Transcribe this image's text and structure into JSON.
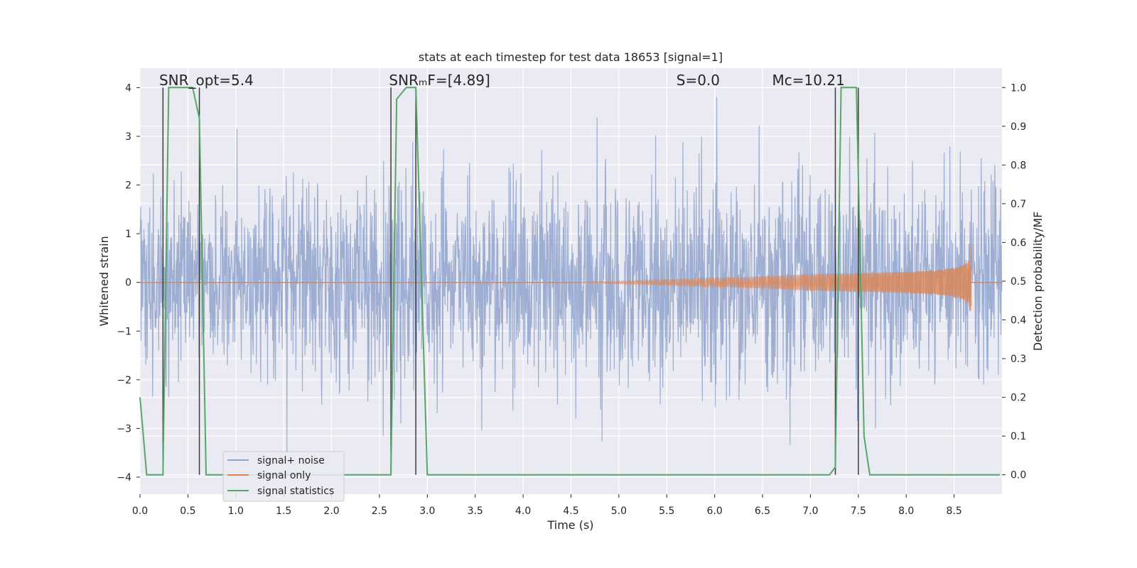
{
  "chart_data": {
    "type": "line",
    "title": "stats at each timestep for test data 18653 [signal=1]",
    "xlabel": "Time (s)",
    "ylabel_left": "Whitened strain",
    "ylabel_right": "Detection probability/MF",
    "xlim": [
      0.0,
      9.0
    ],
    "ylim_left": [
      -4.35,
      4.4
    ],
    "ylim_right": [
      -0.05,
      1.05
    ],
    "x_ticks": [
      "0.0",
      "0.5",
      "1.0",
      "1.5",
      "2.0",
      "2.5",
      "3.0",
      "3.5",
      "4.0",
      "4.5",
      "5.0",
      "5.5",
      "6.0",
      "6.5",
      "7.0",
      "7.5",
      "8.0",
      "8.5"
    ],
    "x_tick_values": [
      0.0,
      0.5,
      1.0,
      1.5,
      2.0,
      2.5,
      3.0,
      3.5,
      4.0,
      4.5,
      5.0,
      5.5,
      6.0,
      6.5,
      7.0,
      7.5,
      8.0,
      8.5
    ],
    "y_left_ticks": [
      "4",
      "3",
      "2",
      "1",
      "0",
      "−1",
      "−2",
      "−3",
      "−4"
    ],
    "y_left_tick_values": [
      4,
      3,
      2,
      1,
      0,
      -1,
      -2,
      -3,
      -4
    ],
    "y_right_ticks": [
      "1.0",
      "0.9",
      "0.8",
      "0.7",
      "0.6",
      "0.5",
      "0.4",
      "0.3",
      "0.2",
      "0.1",
      "0.0"
    ],
    "y_right_tick_values": [
      1.0,
      0.9,
      0.8,
      0.7,
      0.6,
      0.5,
      0.4,
      0.3,
      0.2,
      0.1,
      0.0
    ],
    "grid": true,
    "legend_position": "bottom-left",
    "series": [
      {
        "name": "signal+ noise",
        "color": "#8fa3cc",
        "axis": "left",
        "kind": "noise",
        "approx_amplitude_std": 1.0,
        "approx_range": [
          -3.8,
          4.0
        ],
        "x_range": [
          0.0,
          9.0
        ]
      },
      {
        "name": "signal only",
        "color": "#dd8452",
        "axis": "left",
        "kind": "chirp",
        "chirp_start": 4.6,
        "chirp_end": 8.68,
        "peak_amplitude": 0.8
      },
      {
        "name": "signal statistics",
        "color": "#55a868",
        "axis": "right",
        "x": [
          0.0,
          0.07,
          0.24,
          0.3,
          0.55,
          0.62,
          0.69,
          2.62,
          2.68,
          2.78,
          2.88,
          3.0,
          7.2,
          7.26,
          7.32,
          7.48,
          7.56,
          7.62,
          8.98
        ],
        "y": [
          0.2,
          0.0,
          0.0,
          1.0,
          1.0,
          0.92,
          0.0,
          0.0,
          0.97,
          1.0,
          1.0,
          0.0,
          0.0,
          0.02,
          1.0,
          1.0,
          0.1,
          0.0,
          0.0
        ]
      }
    ],
    "vertical_markers": [
      0.24,
      0.62,
      2.62,
      2.88,
      7.26,
      7.5
    ],
    "vertical_marker_color": "#3c3c3c",
    "annotations": [
      {
        "text": "SNR_opt=5.4",
        "x": 0.2
      },
      {
        "text": "SNRₘF=[4.89]",
        "x": 2.6
      },
      {
        "text": "S=0.0",
        "x": 5.6
      },
      {
        "text": "Mc=10.21",
        "x": 6.6
      }
    ]
  }
}
